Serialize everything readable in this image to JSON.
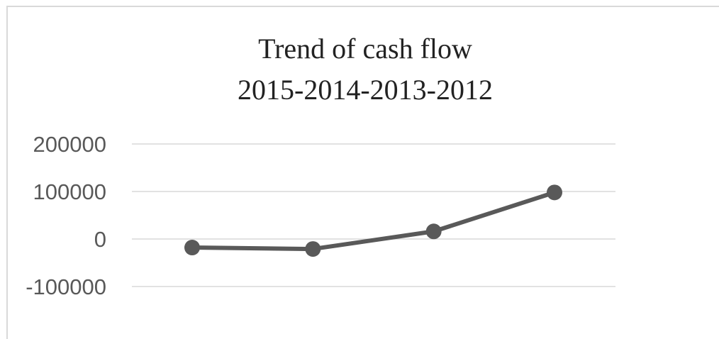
{
  "chart_data": {
    "type": "line",
    "title": "Trend of cash flow",
    "subtitle": "2015-2014-2013-2012",
    "xlabel": "",
    "ylabel": "",
    "categories": [
      "",
      "",
      "",
      ""
    ],
    "series": [
      {
        "values": [
          -18000,
          -21000,
          16000,
          98000
        ]
      }
    ],
    "ylim": [
      -100000,
      200000
    ],
    "yticks": [
      200000,
      100000,
      0,
      -100000
    ],
    "ytick_labels": [
      "200000",
      "100000",
      "0",
      "-100000"
    ],
    "grid": true,
    "legend": "none",
    "colors": {
      "line": "#595959",
      "marker": "#595959",
      "grid": "#d9d9d9"
    }
  }
}
